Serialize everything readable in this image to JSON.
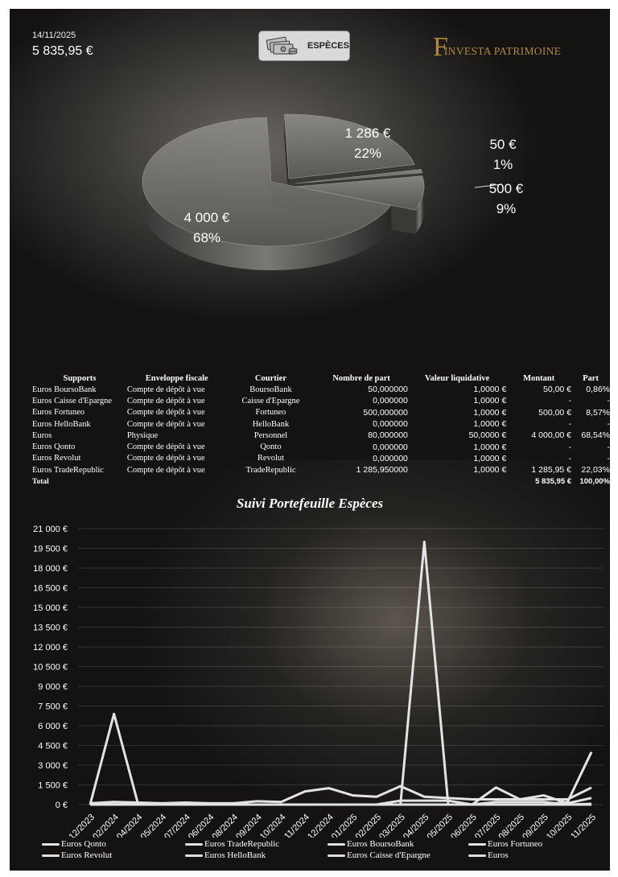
{
  "header": {
    "date": "14/11/2025",
    "total": "5 835,95 €",
    "category_label": "ESPÈCES",
    "category_icon": "cash-icon",
    "logo_letter": "F",
    "logo_text": "INVESTA PATRIMOINE",
    "logo_color": "#b08a3c"
  },
  "pie": {
    "slices": [
      {
        "value": 1286,
        "pct": 22,
        "amount_label": "1 286 €",
        "pct_label": "22%"
      },
      {
        "value": 50,
        "pct": 1,
        "amount_label": "50 €",
        "pct_label": "1%"
      },
      {
        "value": 500,
        "pct": 9,
        "amount_label": "500 €",
        "pct_label": "9%"
      },
      {
        "value": 4000,
        "pct": 68,
        "amount_label": "4 000 €",
        "pct_label": "68%"
      }
    ]
  },
  "table": {
    "headers": [
      "Supports",
      "Enveloppe fiscale",
      "Courtier",
      "Nombre de part",
      "Valeur liquidative",
      "Montant",
      "Part"
    ],
    "rows": [
      [
        "Euros BoursoBank",
        "Compte de dépôt à vue",
        "BoursoBank",
        "50,000000",
        "1,0000 €",
        "50,00 €",
        "0,86%"
      ],
      [
        "Euros Caisse d'Epargne",
        "Compte de dépôt à vue",
        "Caisse d'Epargne",
        "0,000000",
        "1,0000 €",
        "-",
        "-"
      ],
      [
        "Euros Fortuneo",
        "Compte de dépôt à vue",
        "Fortuneo",
        "500,000000",
        "1,0000 €",
        "500,00 €",
        "8,57%"
      ],
      [
        "Euros HelloBank",
        "Compte de dépôt à vue",
        "HelloBank",
        "0,000000",
        "1,0000 €",
        "-",
        "-"
      ],
      [
        "Euros",
        "Physique",
        "Personnel",
        "80,000000",
        "50,0000 €",
        "4 000,00 €",
        "68,54%"
      ],
      [
        "Euros Qonto",
        "Compte de dépôt à vue",
        "Qonto",
        "0,000000",
        "1,0000 €",
        "-",
        "-"
      ],
      [
        "Euros Revolut",
        "Compte de dépôt à vue",
        "Revolut",
        "0,000000",
        "1,0000 €",
        "-",
        "-"
      ],
      [
        "Euros TradeRepublic",
        "Compte de dépôt à vue",
        "TradeRepublic",
        "1 285,950000",
        "1,0000 €",
        "1 285,95 €",
        "22,03%"
      ]
    ],
    "total": {
      "label": "Total",
      "amount": "5 835,95 €",
      "part": "100,00%"
    }
  },
  "chart_data": {
    "type": "line",
    "title": "Suivi Portefeuille Espèces",
    "ylim": [
      0,
      21000
    ],
    "yticks": [
      "0 €",
      "1 500 €",
      "3 000 €",
      "4 500 €",
      "6 000 €",
      "7 500 €",
      "9 000 €",
      "10 500 €",
      "12 000 €",
      "13 500 €",
      "15 000 €",
      "16 500 €",
      "18 000 €",
      "19 500 €",
      "21 000 €"
    ],
    "x": [
      "12/2023",
      "02/2024",
      "04/2024",
      "05/2024",
      "07/2024",
      "06/2024",
      "08/2024",
      "09/2024",
      "10/2024",
      "11/2024",
      "12/2024",
      "01/2025",
      "02/2025",
      "03/2025",
      "04/2025",
      "05/2025",
      "06/2025",
      "07/2025",
      "08/2025",
      "09/2025",
      "10/2025",
      "11/2025"
    ],
    "series": [
      {
        "name": "Euros Qonto",
        "values": [
          0,
          6900,
          100,
          0,
          0,
          0,
          0,
          0,
          0,
          0,
          0,
          0,
          0,
          0,
          0,
          0,
          0,
          0,
          0,
          0,
          0,
          0
        ]
      },
      {
        "name": "Euros TradeRepublic",
        "values": [
          100,
          200,
          150,
          100,
          150,
          100,
          100,
          250,
          200,
          1000,
          1250,
          700,
          600,
          1400,
          600,
          500,
          400,
          400,
          400,
          400,
          400,
          1290
        ]
      },
      {
        "name": "Euros BoursoBank",
        "values": [
          0,
          0,
          0,
          0,
          0,
          0,
          0,
          0,
          0,
          0,
          0,
          0,
          0,
          0,
          20000,
          0,
          0,
          0,
          0,
          0,
          0,
          50
        ]
      },
      {
        "name": "Euros Fortuneo",
        "values": [
          0,
          0,
          0,
          0,
          0,
          0,
          0,
          0,
          0,
          0,
          0,
          0,
          0,
          0,
          0,
          0,
          0,
          1300,
          400,
          700,
          100,
          500
        ]
      },
      {
        "name": "Euros Revolut",
        "values": [
          0,
          0,
          0,
          0,
          0,
          0,
          0,
          0,
          0,
          0,
          0,
          0,
          0,
          300,
          300,
          300,
          0,
          200,
          200,
          200,
          0,
          0
        ]
      },
      {
        "name": "Euros HelloBank",
        "values": [
          0,
          0,
          0,
          0,
          0,
          0,
          0,
          0,
          0,
          0,
          0,
          0,
          0,
          0,
          0,
          0,
          0,
          0,
          0,
          0,
          0,
          0
        ]
      },
      {
        "name": "Euros Caisse d'Epargne",
        "values": [
          0,
          0,
          0,
          0,
          0,
          0,
          0,
          0,
          0,
          0,
          0,
          0,
          0,
          0,
          0,
          0,
          0,
          0,
          0,
          0,
          0,
          0
        ]
      },
      {
        "name": "Euros",
        "values": [
          0,
          0,
          0,
          0,
          0,
          0,
          0,
          0,
          0,
          0,
          0,
          0,
          0,
          0,
          0,
          0,
          0,
          0,
          0,
          0,
          200,
          4000
        ]
      }
    ],
    "line_color": "#e3e3e3",
    "grid": true,
    "legend": "bottom"
  }
}
